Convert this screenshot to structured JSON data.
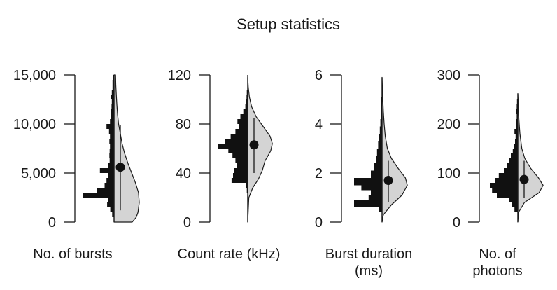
{
  "figure": {
    "title": "Setup statistics"
  },
  "chart_data": [
    {
      "type": "violin-histogram",
      "xlabel_lines": [
        "No. of bursts"
      ],
      "ylim": [
        0,
        15000
      ],
      "yticks": [
        "0",
        "5,000",
        "10,000",
        "15,000"
      ],
      "ytick_values": [
        0,
        5000,
        10000,
        15000
      ],
      "mean": 5600,
      "error_low": 1200,
      "error_high": 9900,
      "y_top": 15000,
      "histogram": [
        {
          "lo": 0,
          "hi": 500,
          "w": 0.0
        },
        {
          "lo": 500,
          "hi": 1000,
          "w": 0.06
        },
        {
          "lo": 1000,
          "hi": 1500,
          "w": 0.12
        },
        {
          "lo": 1500,
          "hi": 2000,
          "w": 0.22
        },
        {
          "lo": 2000,
          "hi": 2500,
          "w": 0.2
        },
        {
          "lo": 2500,
          "hi": 3000,
          "w": 1.0
        },
        {
          "lo": 3000,
          "hi": 3500,
          "w": 0.55
        },
        {
          "lo": 3500,
          "hi": 4000,
          "w": 0.3
        },
        {
          "lo": 4000,
          "hi": 4500,
          "w": 0.24
        },
        {
          "lo": 4500,
          "hi": 5000,
          "w": 0.2
        },
        {
          "lo": 5000,
          "hi": 5500,
          "w": 0.45
        },
        {
          "lo": 5500,
          "hi": 6000,
          "w": 0.18
        },
        {
          "lo": 6000,
          "hi": 6500,
          "w": 0.14
        },
        {
          "lo": 6500,
          "hi": 7000,
          "w": 0.15
        },
        {
          "lo": 7000,
          "hi": 7500,
          "w": 0.14
        },
        {
          "lo": 7500,
          "hi": 8000,
          "w": 0.13
        },
        {
          "lo": 8000,
          "hi": 8500,
          "w": 0.15
        },
        {
          "lo": 8500,
          "hi": 9000,
          "w": 0.13
        },
        {
          "lo": 9000,
          "hi": 9500,
          "w": 0.16
        },
        {
          "lo": 9500,
          "hi": 10000,
          "w": 0.24
        },
        {
          "lo": 10000,
          "hi": 10500,
          "w": 0.13
        },
        {
          "lo": 10500,
          "hi": 11000,
          "w": 0.1
        },
        {
          "lo": 11000,
          "hi": 11500,
          "w": 0.1
        },
        {
          "lo": 11500,
          "hi": 12000,
          "w": 0.08
        },
        {
          "lo": 12000,
          "hi": 12500,
          "w": 0.07
        },
        {
          "lo": 12500,
          "hi": 13000,
          "w": 0.1
        },
        {
          "lo": 13000,
          "hi": 13500,
          "w": 0.07
        },
        {
          "lo": 13500,
          "hi": 14000,
          "w": 0.05
        },
        {
          "lo": 14000,
          "hi": 14500,
          "w": 0.05
        },
        {
          "lo": 14500,
          "hi": 15000,
          "w": 0.04
        }
      ],
      "density": [
        [
          0,
          0.72
        ],
        [
          500,
          0.88
        ],
        [
          1000,
          0.95
        ],
        [
          2000,
          1.0
        ],
        [
          3000,
          0.97
        ],
        [
          4000,
          0.85
        ],
        [
          5000,
          0.7
        ],
        [
          6000,
          0.55
        ],
        [
          7000,
          0.42
        ],
        [
          8000,
          0.32
        ],
        [
          9000,
          0.25
        ],
        [
          10000,
          0.18
        ],
        [
          11000,
          0.14
        ],
        [
          12000,
          0.11
        ],
        [
          13000,
          0.09
        ],
        [
          14000,
          0.07
        ],
        [
          15000,
          0.06
        ]
      ]
    },
    {
      "type": "violin-histogram",
      "xlabel_lines": [
        "Count rate (kHz)"
      ],
      "ylim": [
        0,
        120
      ],
      "yticks": [
        "0",
        "40",
        "80",
        "120"
      ],
      "ytick_values": [
        0,
        40,
        80,
        120
      ],
      "mean": 63,
      "error_low": 40,
      "error_high": 85,
      "y_top": 120,
      "histogram": [
        {
          "lo": 0,
          "hi": 4,
          "w": 0.0
        },
        {
          "lo": 4,
          "hi": 8,
          "w": 0.0
        },
        {
          "lo": 8,
          "hi": 12,
          "w": 0.0
        },
        {
          "lo": 12,
          "hi": 16,
          "w": 0.0
        },
        {
          "lo": 16,
          "hi": 20,
          "w": 0.0
        },
        {
          "lo": 20,
          "hi": 24,
          "w": 0.0
        },
        {
          "lo": 24,
          "hi": 28,
          "w": 0.03
        },
        {
          "lo": 28,
          "hi": 32,
          "w": 0.06
        },
        {
          "lo": 32,
          "hi": 36,
          "w": 0.55
        },
        {
          "lo": 36,
          "hi": 40,
          "w": 0.5
        },
        {
          "lo": 40,
          "hi": 44,
          "w": 0.47
        },
        {
          "lo": 44,
          "hi": 48,
          "w": 0.36
        },
        {
          "lo": 48,
          "hi": 52,
          "w": 0.42
        },
        {
          "lo": 52,
          "hi": 56,
          "w": 0.52
        },
        {
          "lo": 56,
          "hi": 60,
          "w": 0.66
        },
        {
          "lo": 60,
          "hi": 64,
          "w": 1.0
        },
        {
          "lo": 64,
          "hi": 68,
          "w": 0.78
        },
        {
          "lo": 68,
          "hi": 72,
          "w": 0.58
        },
        {
          "lo": 72,
          "hi": 76,
          "w": 0.42
        },
        {
          "lo": 76,
          "hi": 80,
          "w": 0.3
        },
        {
          "lo": 80,
          "hi": 84,
          "w": 0.35
        },
        {
          "lo": 84,
          "hi": 88,
          "w": 0.25
        },
        {
          "lo": 88,
          "hi": 92,
          "w": 0.15
        },
        {
          "lo": 92,
          "hi": 96,
          "w": 0.08
        },
        {
          "lo": 96,
          "hi": 100,
          "w": 0.06
        },
        {
          "lo": 100,
          "hi": 104,
          "w": 0.04
        },
        {
          "lo": 104,
          "hi": 108,
          "w": 0.03
        },
        {
          "lo": 108,
          "hi": 112,
          "w": 0.0
        }
      ],
      "density": [
        [
          0,
          0.0
        ],
        [
          20,
          0.04
        ],
        [
          28,
          0.18
        ],
        [
          35,
          0.38
        ],
        [
          42,
          0.52
        ],
        [
          50,
          0.62
        ],
        [
          58,
          0.82
        ],
        [
          64,
          0.88
        ],
        [
          70,
          0.8
        ],
        [
          78,
          0.55
        ],
        [
          86,
          0.3
        ],
        [
          94,
          0.14
        ],
        [
          102,
          0.06
        ],
        [
          110,
          0.02
        ],
        [
          118,
          0.0
        ]
      ]
    },
    {
      "type": "violin-histogram",
      "xlabel_lines": [
        "Burst duration",
        "(ms)"
      ],
      "ylim": [
        0,
        6
      ],
      "yticks": [
        "0",
        "2",
        "4",
        "6"
      ],
      "ytick_values": [
        0,
        2,
        4,
        6
      ],
      "mean": 1.7,
      "error_low": 0.8,
      "error_high": 2.5,
      "y_top": 5.9,
      "histogram": [
        {
          "lo": 0.0,
          "hi": 0.2,
          "w": 0.0
        },
        {
          "lo": 0.2,
          "hi": 0.4,
          "w": 0.0
        },
        {
          "lo": 0.4,
          "hi": 0.6,
          "w": 0.12
        },
        {
          "lo": 0.6,
          "hi": 0.9,
          "w": 1.0
        },
        {
          "lo": 0.9,
          "hi": 1.1,
          "w": 0.48
        },
        {
          "lo": 1.1,
          "hi": 1.3,
          "w": 0.4
        },
        {
          "lo": 1.3,
          "hi": 1.5,
          "w": 0.74
        },
        {
          "lo": 1.5,
          "hi": 1.8,
          "w": 1.0
        },
        {
          "lo": 1.8,
          "hi": 2.1,
          "w": 0.4
        },
        {
          "lo": 2.1,
          "hi": 2.4,
          "w": 0.3
        },
        {
          "lo": 2.4,
          "hi": 2.7,
          "w": 0.22
        },
        {
          "lo": 2.7,
          "hi": 3.0,
          "w": 0.18
        },
        {
          "lo": 3.0,
          "hi": 3.3,
          "w": 0.14
        },
        {
          "lo": 3.3,
          "hi": 3.6,
          "w": 0.1
        },
        {
          "lo": 3.6,
          "hi": 3.9,
          "w": 0.08
        },
        {
          "lo": 3.9,
          "hi": 4.2,
          "w": 0.06
        },
        {
          "lo": 4.2,
          "hi": 4.5,
          "w": 0.05
        },
        {
          "lo": 4.5,
          "hi": 4.8,
          "w": 0.05
        },
        {
          "lo": 4.8,
          "hi": 5.1,
          "w": 0.03
        },
        {
          "lo": 5.1,
          "hi": 5.4,
          "w": 0.0
        }
      ],
      "density": [
        [
          0,
          0.0
        ],
        [
          0.3,
          0.05
        ],
        [
          0.7,
          0.35
        ],
        [
          1.1,
          0.75
        ],
        [
          1.5,
          0.95
        ],
        [
          1.8,
          0.88
        ],
        [
          2.2,
          0.6
        ],
        [
          2.6,
          0.35
        ],
        [
          3.0,
          0.2
        ],
        [
          3.5,
          0.12
        ],
        [
          4.0,
          0.08
        ],
        [
          4.5,
          0.05
        ],
        [
          5.0,
          0.03
        ],
        [
          5.9,
          0.0
        ]
      ]
    },
    {
      "type": "violin-histogram",
      "xlabel_lines": [
        "No. of",
        "photons"
      ],
      "ylim": [
        0,
        300
      ],
      "yticks": [
        "0",
        "100",
        "200",
        "300"
      ],
      "ytick_values": [
        0,
        100,
        200,
        300
      ],
      "mean": 87,
      "error_low": 50,
      "error_high": 125,
      "y_top": 262,
      "histogram": [
        {
          "lo": 0,
          "hi": 10,
          "w": 0.0
        },
        {
          "lo": 10,
          "hi": 20,
          "w": 0.0
        },
        {
          "lo": 20,
          "hi": 30,
          "w": 0.12
        },
        {
          "lo": 30,
          "hi": 40,
          "w": 0.2
        },
        {
          "lo": 40,
          "hi": 50,
          "w": 0.3
        },
        {
          "lo": 50,
          "hi": 60,
          "w": 0.75
        },
        {
          "lo": 60,
          "hi": 70,
          "w": 0.92
        },
        {
          "lo": 70,
          "hi": 80,
          "w": 1.0
        },
        {
          "lo": 80,
          "hi": 90,
          "w": 0.8
        },
        {
          "lo": 90,
          "hi": 100,
          "w": 0.68
        },
        {
          "lo": 100,
          "hi": 110,
          "w": 0.5
        },
        {
          "lo": 110,
          "hi": 120,
          "w": 0.4
        },
        {
          "lo": 120,
          "hi": 130,
          "w": 0.32
        },
        {
          "lo": 130,
          "hi": 140,
          "w": 0.25
        },
        {
          "lo": 140,
          "hi": 150,
          "w": 0.18
        },
        {
          "lo": 150,
          "hi": 160,
          "w": 0.14
        },
        {
          "lo": 160,
          "hi": 170,
          "w": 0.1
        },
        {
          "lo": 170,
          "hi": 180,
          "w": 0.08
        },
        {
          "lo": 180,
          "hi": 190,
          "w": 0.12
        },
        {
          "lo": 190,
          "hi": 200,
          "w": 0.06
        },
        {
          "lo": 200,
          "hi": 210,
          "w": 0.05
        },
        {
          "lo": 210,
          "hi": 220,
          "w": 0.04
        },
        {
          "lo": 220,
          "hi": 230,
          "w": 0.05
        },
        {
          "lo": 230,
          "hi": 240,
          "w": 0.04
        },
        {
          "lo": 240,
          "hi": 250,
          "w": 0.03
        }
      ],
      "density": [
        [
          0,
          0.0
        ],
        [
          20,
          0.03
        ],
        [
          40,
          0.25
        ],
        [
          60,
          0.8
        ],
        [
          75,
          0.95
        ],
        [
          90,
          0.78
        ],
        [
          110,
          0.48
        ],
        [
          130,
          0.26
        ],
        [
          150,
          0.15
        ],
        [
          180,
          0.08
        ],
        [
          210,
          0.04
        ],
        [
          240,
          0.02
        ],
        [
          262,
          0.0
        ]
      ]
    }
  ]
}
